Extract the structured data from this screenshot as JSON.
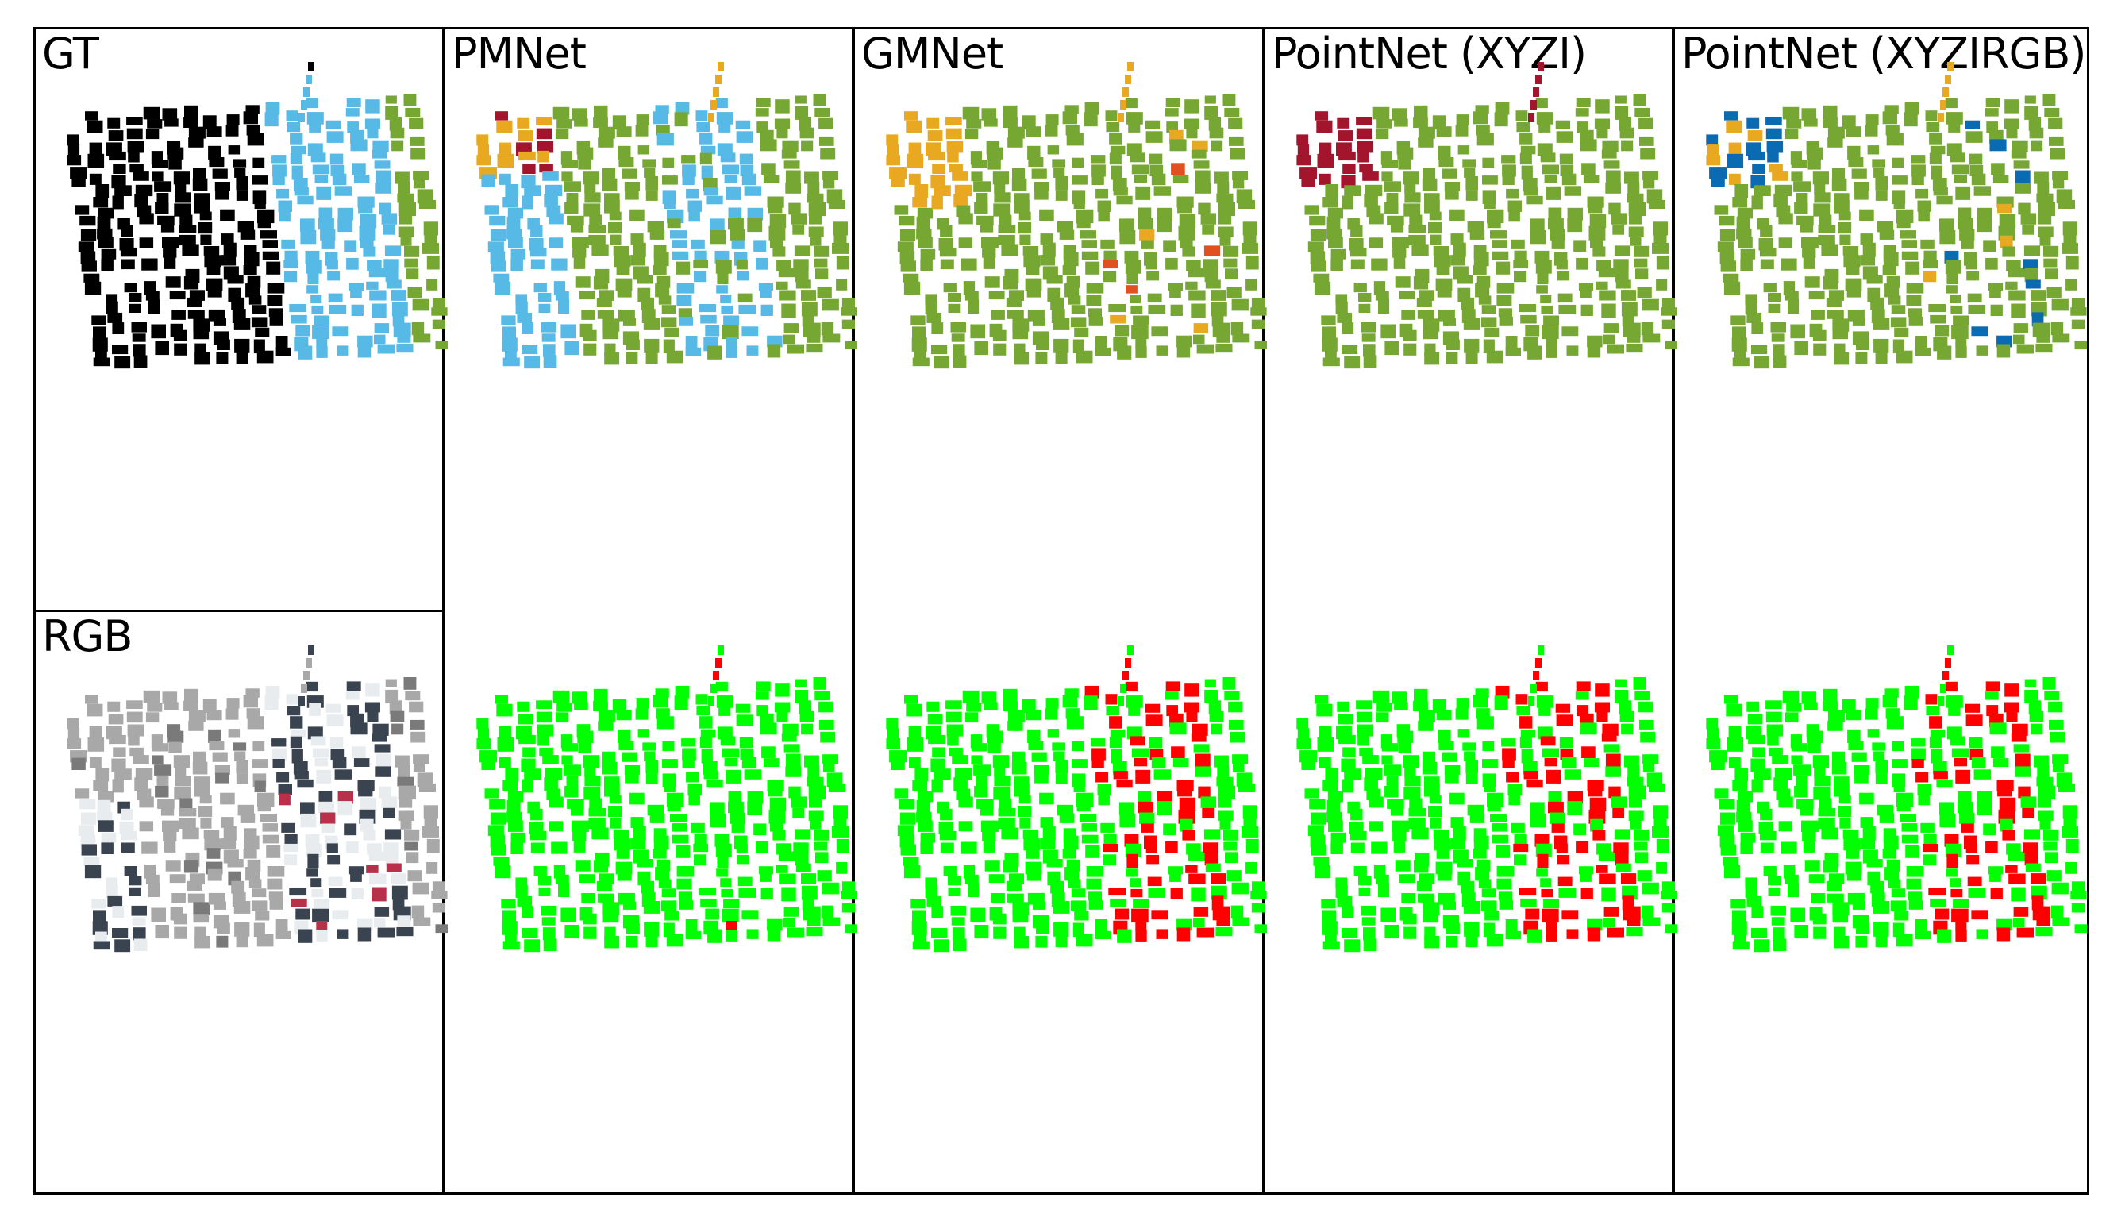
{
  "figure": {
    "panels": {
      "gt": {
        "label": "GT"
      },
      "rgb": {
        "label": "RGB"
      },
      "pmnet": {
        "label": "PMNet"
      },
      "gmnet": {
        "label": "GMNet"
      },
      "pointnet_xyzi": {
        "label": "PointNet (XYZI)"
      },
      "pointnet_xyzirgb": {
        "label": "PointNet (XYZIRGB)"
      }
    },
    "colors": {
      "frame": "#000000",
      "gt_class_a": "#000000",
      "gt_class_b": "#57b9e6",
      "gt_class_c": "#76a733",
      "pred_green": "#76a733",
      "pred_blue": "#57b9e6",
      "pred_orange": "#e8a820",
      "pred_darkred": "#a3152d",
      "pred_darkblue": "#0a6ab2",
      "correct": "#00ff00",
      "error": "#ff0000",
      "rgb_gray": "#a8a8a8",
      "rgb_dark": "#3a4350",
      "rgb_light": "#e8ecef",
      "rgb_red": "#b8304a"
    }
  }
}
